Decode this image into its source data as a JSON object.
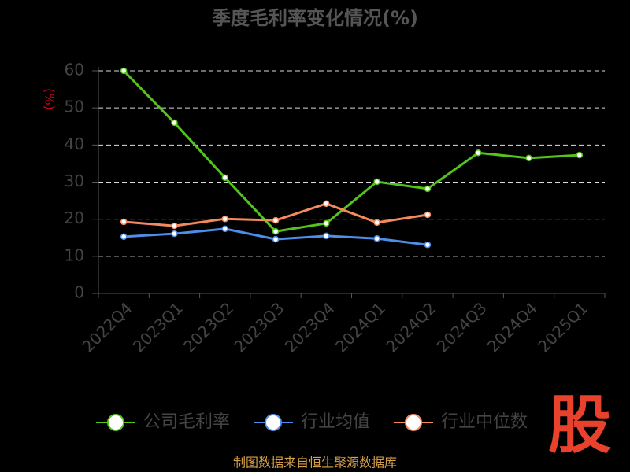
{
  "chart_data": {
    "type": "line",
    "title": "季度毛利率变化情况(%)",
    "y_label": "(%)",
    "categories": [
      "2022Q4",
      "2023Q1",
      "2023Q2",
      "2023Q3",
      "2023Q4",
      "2024Q1",
      "2024Q2",
      "2024Q3",
      "2024Q4",
      "2025Q1"
    ],
    "series": [
      {
        "name": "公司毛利率",
        "color": "#52c41a",
        "values": [
          60,
          46.0,
          31.2,
          16.7,
          18.9,
          30.1,
          28.2,
          37.9,
          36.5,
          37.3
        ]
      },
      {
        "name": "行业均值",
        "color": "#4e8ee8",
        "values": [
          15.3,
          16.1,
          17.4,
          14.6,
          15.5,
          14.8,
          13.1,
          null,
          null,
          null
        ]
      },
      {
        "name": "行业中位数",
        "color": "#f4895f",
        "values": [
          19.3,
          18.2,
          20.1,
          19.7,
          24.2,
          19.1,
          21.2,
          null,
          null,
          null
        ]
      }
    ],
    "ylim": [
      0,
      60
    ],
    "yticks": [
      0,
      10,
      20,
      30,
      40,
      50,
      60
    ],
    "grid": true,
    "source": "制图数据来自恒生聚源数据库",
    "logo": "股"
  }
}
